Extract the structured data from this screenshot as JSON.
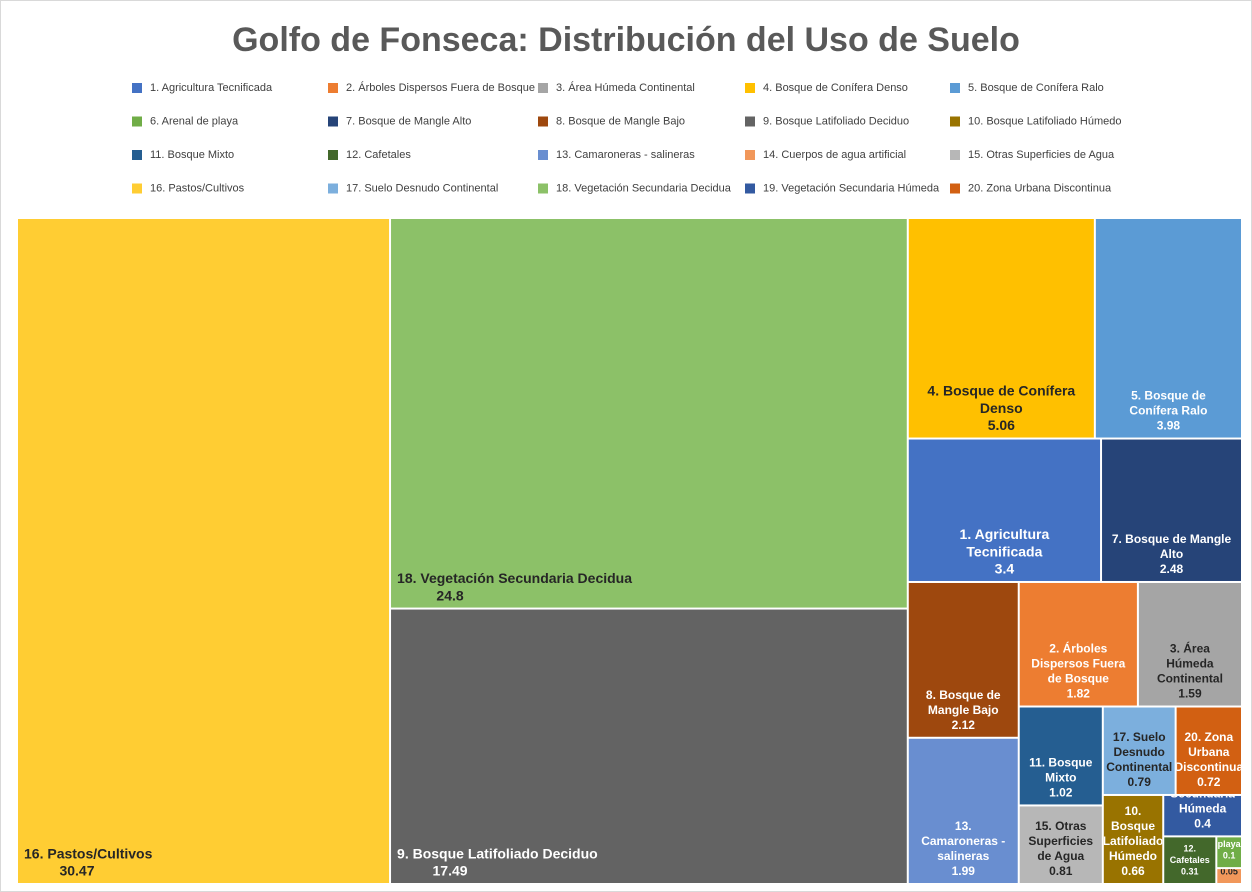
{
  "chart_data": {
    "type": "treemap",
    "title": "Golfo de Fonseca: Distribución del Uso de Suelo",
    "categories": [
      "1. Agricultura Tecnificada",
      "2. Árboles Dispersos Fuera de Bosque",
      "3. Área Húmeda Continental",
      "4. Bosque de Conífera Denso",
      "5. Bosque de Conífera Ralo",
      "6. Arenal de playa",
      "7. Bosque de Mangle Alto",
      "8. Bosque de Mangle Bajo",
      "9. Bosque Latifoliado Deciduo",
      "10. Bosque Latifoliado Húmedo",
      "11. Bosque Mixto",
      "12. Cafetales",
      "13. Camaroneras - salineras",
      "14. Cuerpos de agua artificial",
      "15. Otras Superficies de Agua",
      "16. Pastos/Cultivos",
      "17. Suelo Desnudo Continental",
      "18. Vegetación Secundaria Decidua",
      "19. Vegetación Secundaria Húmeda",
      "20. Zona Urbana Discontinua"
    ],
    "values": [
      3.4,
      1.82,
      1.59,
      5.06,
      3.98,
      0.1,
      2.48,
      2.12,
      17.49,
      0.66,
      1.02,
      0.31,
      1.99,
      0.05,
      0.81,
      30.47,
      0.79,
      24.8,
      0.4,
      0.72
    ],
    "colors": [
      "#4472c4",
      "#ed7d31",
      "#a5a5a5",
      "#ffc000",
      "#5b9bd5",
      "#70ad47",
      "#264478",
      "#9e480e",
      "#636363",
      "#997300",
      "#255e91",
      "#43682b",
      "#698ed0",
      "#f1975a",
      "#b7b7b7",
      "#ffcd33",
      "#7cafdd",
      "#8cc168",
      "#335aa1",
      "#d26012"
    ],
    "legend": "top"
  }
}
